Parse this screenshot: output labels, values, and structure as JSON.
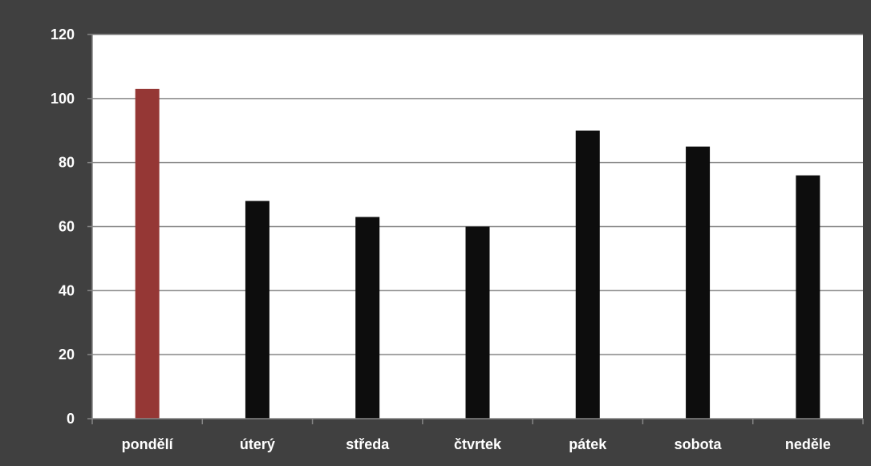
{
  "chart_data": {
    "type": "bar",
    "categories": [
      "pondělí",
      "úterý",
      "středa",
      "čtvrtek",
      "pátek",
      "sobota",
      "neděle"
    ],
    "values": [
      103,
      68,
      63,
      60,
      90,
      85,
      76
    ],
    "title": "",
    "xlabel": "",
    "ylabel": "",
    "ylim": [
      0,
      120
    ],
    "yticks": [
      0,
      20,
      40,
      60,
      80,
      100,
      120
    ],
    "grid": true,
    "legend": "none"
  },
  "colors": {
    "frame_background": "#404040",
    "plot_background": "#ffffff",
    "gridline": "#868686",
    "bar_default": "#0d0d0d",
    "bar_highlight": "#953735",
    "tick_text": "#ffffff"
  },
  "highlight_index": 0
}
